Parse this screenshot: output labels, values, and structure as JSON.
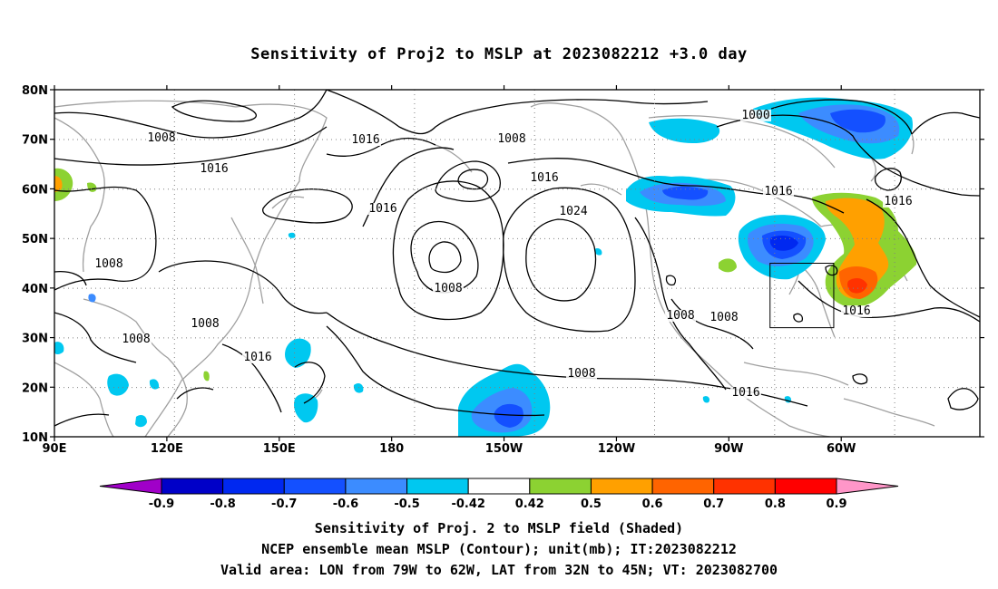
{
  "title": "Sensitivity of Proj2 to MSLP at 2023082212 +3.0 day",
  "lat_labels": [
    "80N",
    "70N",
    "60N",
    "50N",
    "40N",
    "30N",
    "20N",
    "10N"
  ],
  "lon_labels": [
    "90E",
    "120E",
    "150E",
    "180",
    "150W",
    "120W",
    "90W",
    "60W"
  ],
  "contour_labels": [
    "1008",
    "1016",
    "1016",
    "1008",
    "1016",
    "1016",
    "1000",
    "1008",
    "1016",
    "1016",
    "1024",
    "1008",
    "1016",
    "1008",
    "1008",
    "1016",
    "1008",
    "1008",
    "1008",
    "1016"
  ],
  "colorbar": {
    "labels": [
      "-0.9",
      "-0.8",
      "-0.7",
      "-0.6",
      "-0.5",
      "-0.42",
      "0.42",
      "0.5",
      "0.6",
      "0.7",
      "0.8",
      "0.9"
    ],
    "colors": [
      "#a000c8",
      "#0000c8",
      "#0028f0",
      "#1450ff",
      "#3c8cff",
      "#00c8f0",
      "#ffffff",
      "#8cd232",
      "#ffa000",
      "#ff6400",
      "#ff3200",
      "#ff0000",
      "#ff96c8"
    ]
  },
  "valid_box": {
    "lon_min": -79,
    "lon_max": -62,
    "lat_min": 32,
    "lat_max": 45
  },
  "captions": [
    "Sensitivity of Proj. 2 to MSLP field (Shaded)",
    "NCEP ensemble mean MSLP (Contour); unit(mb); IT:2023082212",
    "Valid area: LON from 79W to 62W, LAT from 32N to 45N; VT: 2023082700"
  ]
}
